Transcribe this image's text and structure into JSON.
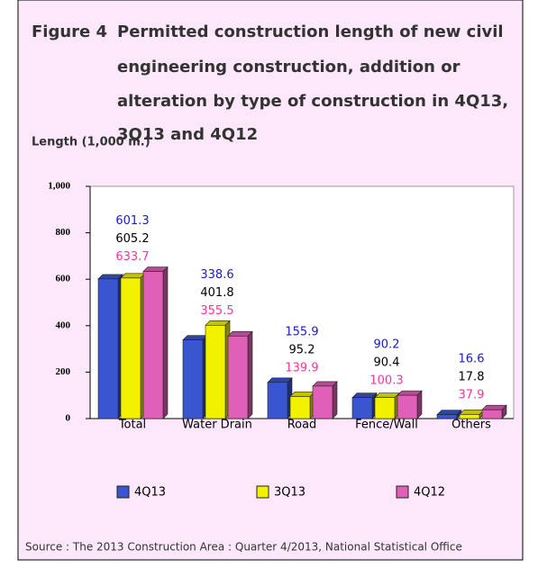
{
  "chart_data": {
    "type": "bar",
    "figure_label": "Figure 4",
    "title": [
      "Permitted construction length of new civil",
      "engineering construction, addition or",
      "alteration by type of construction in 4Q13,",
      "3Q13 and 4Q12"
    ],
    "y_label": "Length (1,000 m.)",
    "categories": [
      "Total",
      "Water Drain",
      "Road",
      "Fence/Wall",
      "Others"
    ],
    "series": [
      {
        "name": "4Q13",
        "color": "#3a55d0",
        "label_color": "#1a1acc",
        "values": [
          601.3,
          338.6,
          155.9,
          90.2,
          16.6
        ]
      },
      {
        "name": "3Q13",
        "color": "#f2f200",
        "label_color": "#000000",
        "values": [
          605.2,
          401.8,
          95.2,
          90.4,
          17.8
        ]
      },
      {
        "name": "4Q12",
        "color": "#e060b8",
        "label_color": "#ff3399",
        "values": [
          633.7,
          355.5,
          139.9,
          100.3,
          37.9
        ]
      }
    ],
    "ylim": [
      0,
      1000
    ],
    "yticks": [
      0,
      200,
      400,
      600,
      800,
      {
        "value": 1000,
        "label": "1,000"
      }
    ],
    "source": "Source : The 2013 Construction Area : Quarter 4/2013, National Statistical Office"
  }
}
